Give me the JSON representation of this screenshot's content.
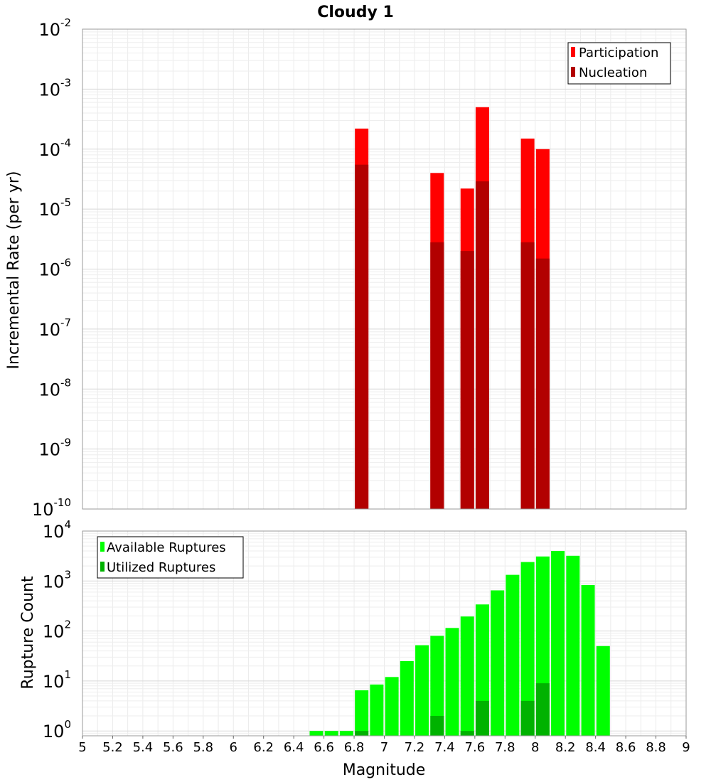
{
  "chart_data": [
    {
      "type": "bar",
      "title": "Cloudy 1",
      "ylabel": "Incremental Rate (per yr)",
      "yscale": "log",
      "ylim": [
        1e-10,
        0.01
      ],
      "yticks": [
        {
          "base": "10",
          "exp": "-2"
        },
        {
          "base": "10",
          "exp": "-3"
        },
        {
          "base": "10",
          "exp": "-4"
        },
        {
          "base": "10",
          "exp": "-5"
        },
        {
          "base": "10",
          "exp": "-6"
        },
        {
          "base": "10",
          "exp": "-7"
        },
        {
          "base": "10",
          "exp": "-8"
        },
        {
          "base": "10",
          "exp": "-9"
        },
        {
          "base": "10",
          "exp": "-10"
        }
      ],
      "grid": true,
      "legend_position": "top-right",
      "series": [
        {
          "name": "Participation",
          "color": "#ff0000",
          "points": [
            {
              "x": 6.85,
              "y": 0.00022
            },
            {
              "x": 7.35,
              "y": 4e-05
            },
            {
              "x": 7.55,
              "y": 2.2e-05
            },
            {
              "x": 7.65,
              "y": 0.0005
            },
            {
              "x": 7.95,
              "y": 0.00015
            },
            {
              "x": 8.05,
              "y": 0.0001
            }
          ]
        },
        {
          "name": "Nucleation",
          "color": "#b20000",
          "points": [
            {
              "x": 6.85,
              "y": 5.5e-05
            },
            {
              "x": 7.35,
              "y": 2.8e-06
            },
            {
              "x": 7.55,
              "y": 2e-06
            },
            {
              "x": 7.65,
              "y": 2.9e-05
            },
            {
              "x": 7.95,
              "y": 2.8e-06
            },
            {
              "x": 8.05,
              "y": 1.5e-06
            }
          ]
        }
      ]
    },
    {
      "type": "bar",
      "ylabel": "Rupture Count",
      "xlabel": "Magnitude",
      "yscale": "log",
      "ylim": [
        0.8,
        10000
      ],
      "xlim": [
        5,
        9
      ],
      "xticks": [
        "5",
        "5.2",
        "5.4",
        "5.6",
        "5.8",
        "6",
        "6.2",
        "6.4",
        "6.6",
        "6.8",
        "7",
        "7.2",
        "7.4",
        "7.6",
        "7.8",
        "8",
        "8.2",
        "8.4",
        "8.6",
        "8.8",
        "9"
      ],
      "yticks": [
        {
          "base": "10",
          "exp": "4"
        },
        {
          "base": "10",
          "exp": "3"
        },
        {
          "base": "10",
          "exp": "2"
        },
        {
          "base": "10",
          "exp": "1"
        },
        {
          "base": "10",
          "exp": "0"
        }
      ],
      "grid": true,
      "legend_position": "top-left",
      "series": [
        {
          "name": "Available Ruptures",
          "color": "#00ff00",
          "points": [
            {
              "x": 6.55,
              "y": 1
            },
            {
              "x": 6.65,
              "y": 1
            },
            {
              "x": 6.75,
              "y": 1
            },
            {
              "x": 6.85,
              "y": 6.5
            },
            {
              "x": 6.95,
              "y": 8.5
            },
            {
              "x": 7.05,
              "y": 12
            },
            {
              "x": 7.15,
              "y": 25
            },
            {
              "x": 7.25,
              "y": 52
            },
            {
              "x": 7.35,
              "y": 80
            },
            {
              "x": 7.45,
              "y": 115
            },
            {
              "x": 7.55,
              "y": 195
            },
            {
              "x": 7.65,
              "y": 340
            },
            {
              "x": 7.75,
              "y": 650
            },
            {
              "x": 7.85,
              "y": 1330
            },
            {
              "x": 7.95,
              "y": 2400
            },
            {
              "x": 8.05,
              "y": 3100
            },
            {
              "x": 8.15,
              "y": 4000
            },
            {
              "x": 8.25,
              "y": 3200
            },
            {
              "x": 8.35,
              "y": 830
            },
            {
              "x": 8.45,
              "y": 50
            }
          ]
        },
        {
          "name": "Utilized Ruptures",
          "color": "#00b200",
          "points": [
            {
              "x": 6.85,
              "y": 1
            },
            {
              "x": 7.35,
              "y": 2
            },
            {
              "x": 7.55,
              "y": 1
            },
            {
              "x": 7.65,
              "y": 4
            },
            {
              "x": 7.95,
              "y": 4
            },
            {
              "x": 8.05,
              "y": 9
            }
          ]
        }
      ]
    }
  ]
}
